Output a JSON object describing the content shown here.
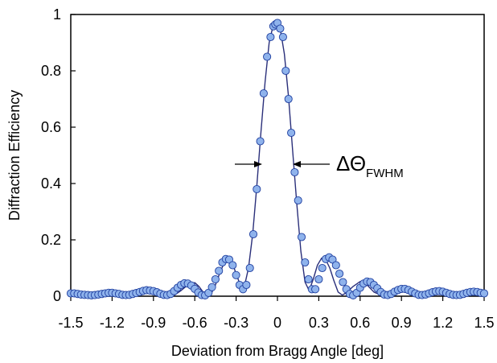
{
  "chart_data": {
    "type": "scatter",
    "xlabel": "Deviation from Bragg Angle [deg]",
    "ylabel": "Diffraction Efficiency",
    "xlim": [
      -1.5,
      1.5
    ],
    "ylim": [
      0,
      1
    ],
    "xticks": [
      "-1.5",
      "-1.2",
      "-0.9",
      "-0.6",
      "-0.3",
      "0",
      "0.3",
      "0.6",
      "0.9",
      "1.2",
      "1.5"
    ],
    "yticks": [
      "0",
      "0.2",
      "0.4",
      "0.6",
      "0.8",
      "1"
    ],
    "annotation": {
      "symbol": "ΔΘ",
      "subscript": "FWHM"
    },
    "grid": false,
    "colors": {
      "line": "#2a2f7a",
      "marker_fill": "#8fb3ec",
      "marker_stroke": "#1f3fa0"
    },
    "series": [
      {
        "kind": "line",
        "x": [
          -1.5,
          -1.45,
          -1.4,
          -1.35,
          -1.3,
          -1.25,
          -1.2,
          -1.15,
          -1.1,
          -1.05,
          -1.0,
          -0.95,
          -0.9,
          -0.85,
          -0.8,
          -0.75,
          -0.7,
          -0.65,
          -0.6,
          -0.57,
          -0.54,
          -0.51,
          -0.48,
          -0.45,
          -0.42,
          -0.39,
          -0.36,
          -0.33,
          -0.3,
          -0.27,
          -0.24,
          -0.21,
          -0.18,
          -0.15,
          -0.12,
          -0.09,
          -0.06,
          -0.03,
          0.0,
          0.02,
          0.05,
          0.08,
          0.11,
          0.14,
          0.17,
          0.2,
          0.23,
          0.26,
          0.29,
          0.32,
          0.35,
          0.38,
          0.41,
          0.44,
          0.47,
          0.5,
          0.55,
          0.6,
          0.65,
          0.7,
          0.75,
          0.8,
          0.85,
          0.9,
          0.95,
          1.0,
          1.05,
          1.1,
          1.15,
          1.2,
          1.25,
          1.3,
          1.35,
          1.4,
          1.45,
          1.5
        ],
        "y": [
          0.01,
          0.008,
          0.005,
          0.003,
          0.005,
          0.01,
          0.012,
          0.008,
          0.003,
          0.005,
          0.012,
          0.02,
          0.022,
          0.016,
          0.006,
          0.003,
          0.02,
          0.04,
          0.048,
          0.035,
          0.015,
          0.003,
          0.01,
          0.04,
          0.08,
          0.115,
          0.132,
          0.12,
          0.08,
          0.04,
          0.035,
          0.1,
          0.22,
          0.39,
          0.58,
          0.76,
          0.9,
          0.965,
          0.97,
          0.95,
          0.86,
          0.71,
          0.52,
          0.33,
          0.16,
          0.05,
          0.02,
          0.06,
          0.11,
          0.135,
          0.13,
          0.1,
          0.055,
          0.015,
          0.004,
          0.012,
          0.035,
          0.052,
          0.04,
          0.015,
          0.004,
          0.008,
          0.022,
          0.028,
          0.02,
          0.007,
          0.004,
          0.012,
          0.018,
          0.014,
          0.005,
          0.003,
          0.01,
          0.016,
          0.013,
          0.008
        ]
      },
      {
        "kind": "markers",
        "x": [
          -1.5,
          -1.475,
          -1.45,
          -1.425,
          -1.4,
          -1.375,
          -1.35,
          -1.325,
          -1.3,
          -1.275,
          -1.25,
          -1.225,
          -1.2,
          -1.175,
          -1.15,
          -1.125,
          -1.1,
          -1.075,
          -1.05,
          -1.025,
          -1.0,
          -0.975,
          -0.95,
          -0.925,
          -0.9,
          -0.875,
          -0.85,
          -0.825,
          -0.8,
          -0.775,
          -0.75,
          -0.725,
          -0.7,
          -0.675,
          -0.65,
          -0.625,
          -0.6,
          -0.575,
          -0.55,
          -0.525,
          -0.5,
          -0.475,
          -0.45,
          -0.425,
          -0.4,
          -0.375,
          -0.35,
          -0.325,
          -0.3,
          -0.275,
          -0.25,
          -0.225,
          -0.2,
          -0.175,
          -0.15,
          -0.125,
          -0.1,
          -0.075,
          -0.05,
          -0.03,
          -0.015,
          0.0,
          0.02,
          0.04,
          0.06,
          0.08,
          0.1,
          0.125,
          0.15,
          0.175,
          0.2,
          0.225,
          0.25,
          0.275,
          0.3,
          0.325,
          0.35,
          0.375,
          0.4,
          0.425,
          0.45,
          0.475,
          0.5,
          0.525,
          0.55,
          0.575,
          0.6,
          0.625,
          0.65,
          0.675,
          0.7,
          0.725,
          0.75,
          0.775,
          0.8,
          0.825,
          0.85,
          0.875,
          0.9,
          0.925,
          0.95,
          0.975,
          1.0,
          1.025,
          1.05,
          1.075,
          1.1,
          1.125,
          1.15,
          1.175,
          1.2,
          1.225,
          1.25,
          1.275,
          1.3,
          1.325,
          1.35,
          1.375,
          1.4,
          1.425,
          1.45,
          1.475,
          1.5
        ],
        "y": [
          0.01,
          0.01,
          0.008,
          0.006,
          0.005,
          0.004,
          0.003,
          0.004,
          0.006,
          0.008,
          0.01,
          0.012,
          0.012,
          0.01,
          0.008,
          0.005,
          0.004,
          0.005,
          0.008,
          0.011,
          0.015,
          0.019,
          0.021,
          0.02,
          0.018,
          0.014,
          0.009,
          0.005,
          0.004,
          0.008,
          0.018,
          0.03,
          0.04,
          0.046,
          0.045,
          0.038,
          0.026,
          0.013,
          0.004,
          0.003,
          0.012,
          0.032,
          0.06,
          0.09,
          0.12,
          0.132,
          0.13,
          0.11,
          0.075,
          0.04,
          0.025,
          0.04,
          0.1,
          0.22,
          0.38,
          0.55,
          0.72,
          0.85,
          0.92,
          0.958,
          0.965,
          0.97,
          0.95,
          0.92,
          0.8,
          0.7,
          0.58,
          0.44,
          0.34,
          0.21,
          0.12,
          0.06,
          0.025,
          0.025,
          0.06,
          0.1,
          0.132,
          0.138,
          0.13,
          0.11,
          0.08,
          0.05,
          0.025,
          0.008,
          0.003,
          0.012,
          0.03,
          0.045,
          0.052,
          0.05,
          0.04,
          0.028,
          0.015,
          0.006,
          0.004,
          0.008,
          0.016,
          0.022,
          0.026,
          0.026,
          0.022,
          0.016,
          0.01,
          0.005,
          0.004,
          0.006,
          0.01,
          0.014,
          0.017,
          0.018,
          0.016,
          0.012,
          0.008,
          0.005,
          0.004,
          0.005,
          0.008,
          0.012,
          0.015,
          0.016,
          0.015,
          0.012,
          0.01
        ]
      }
    ]
  }
}
